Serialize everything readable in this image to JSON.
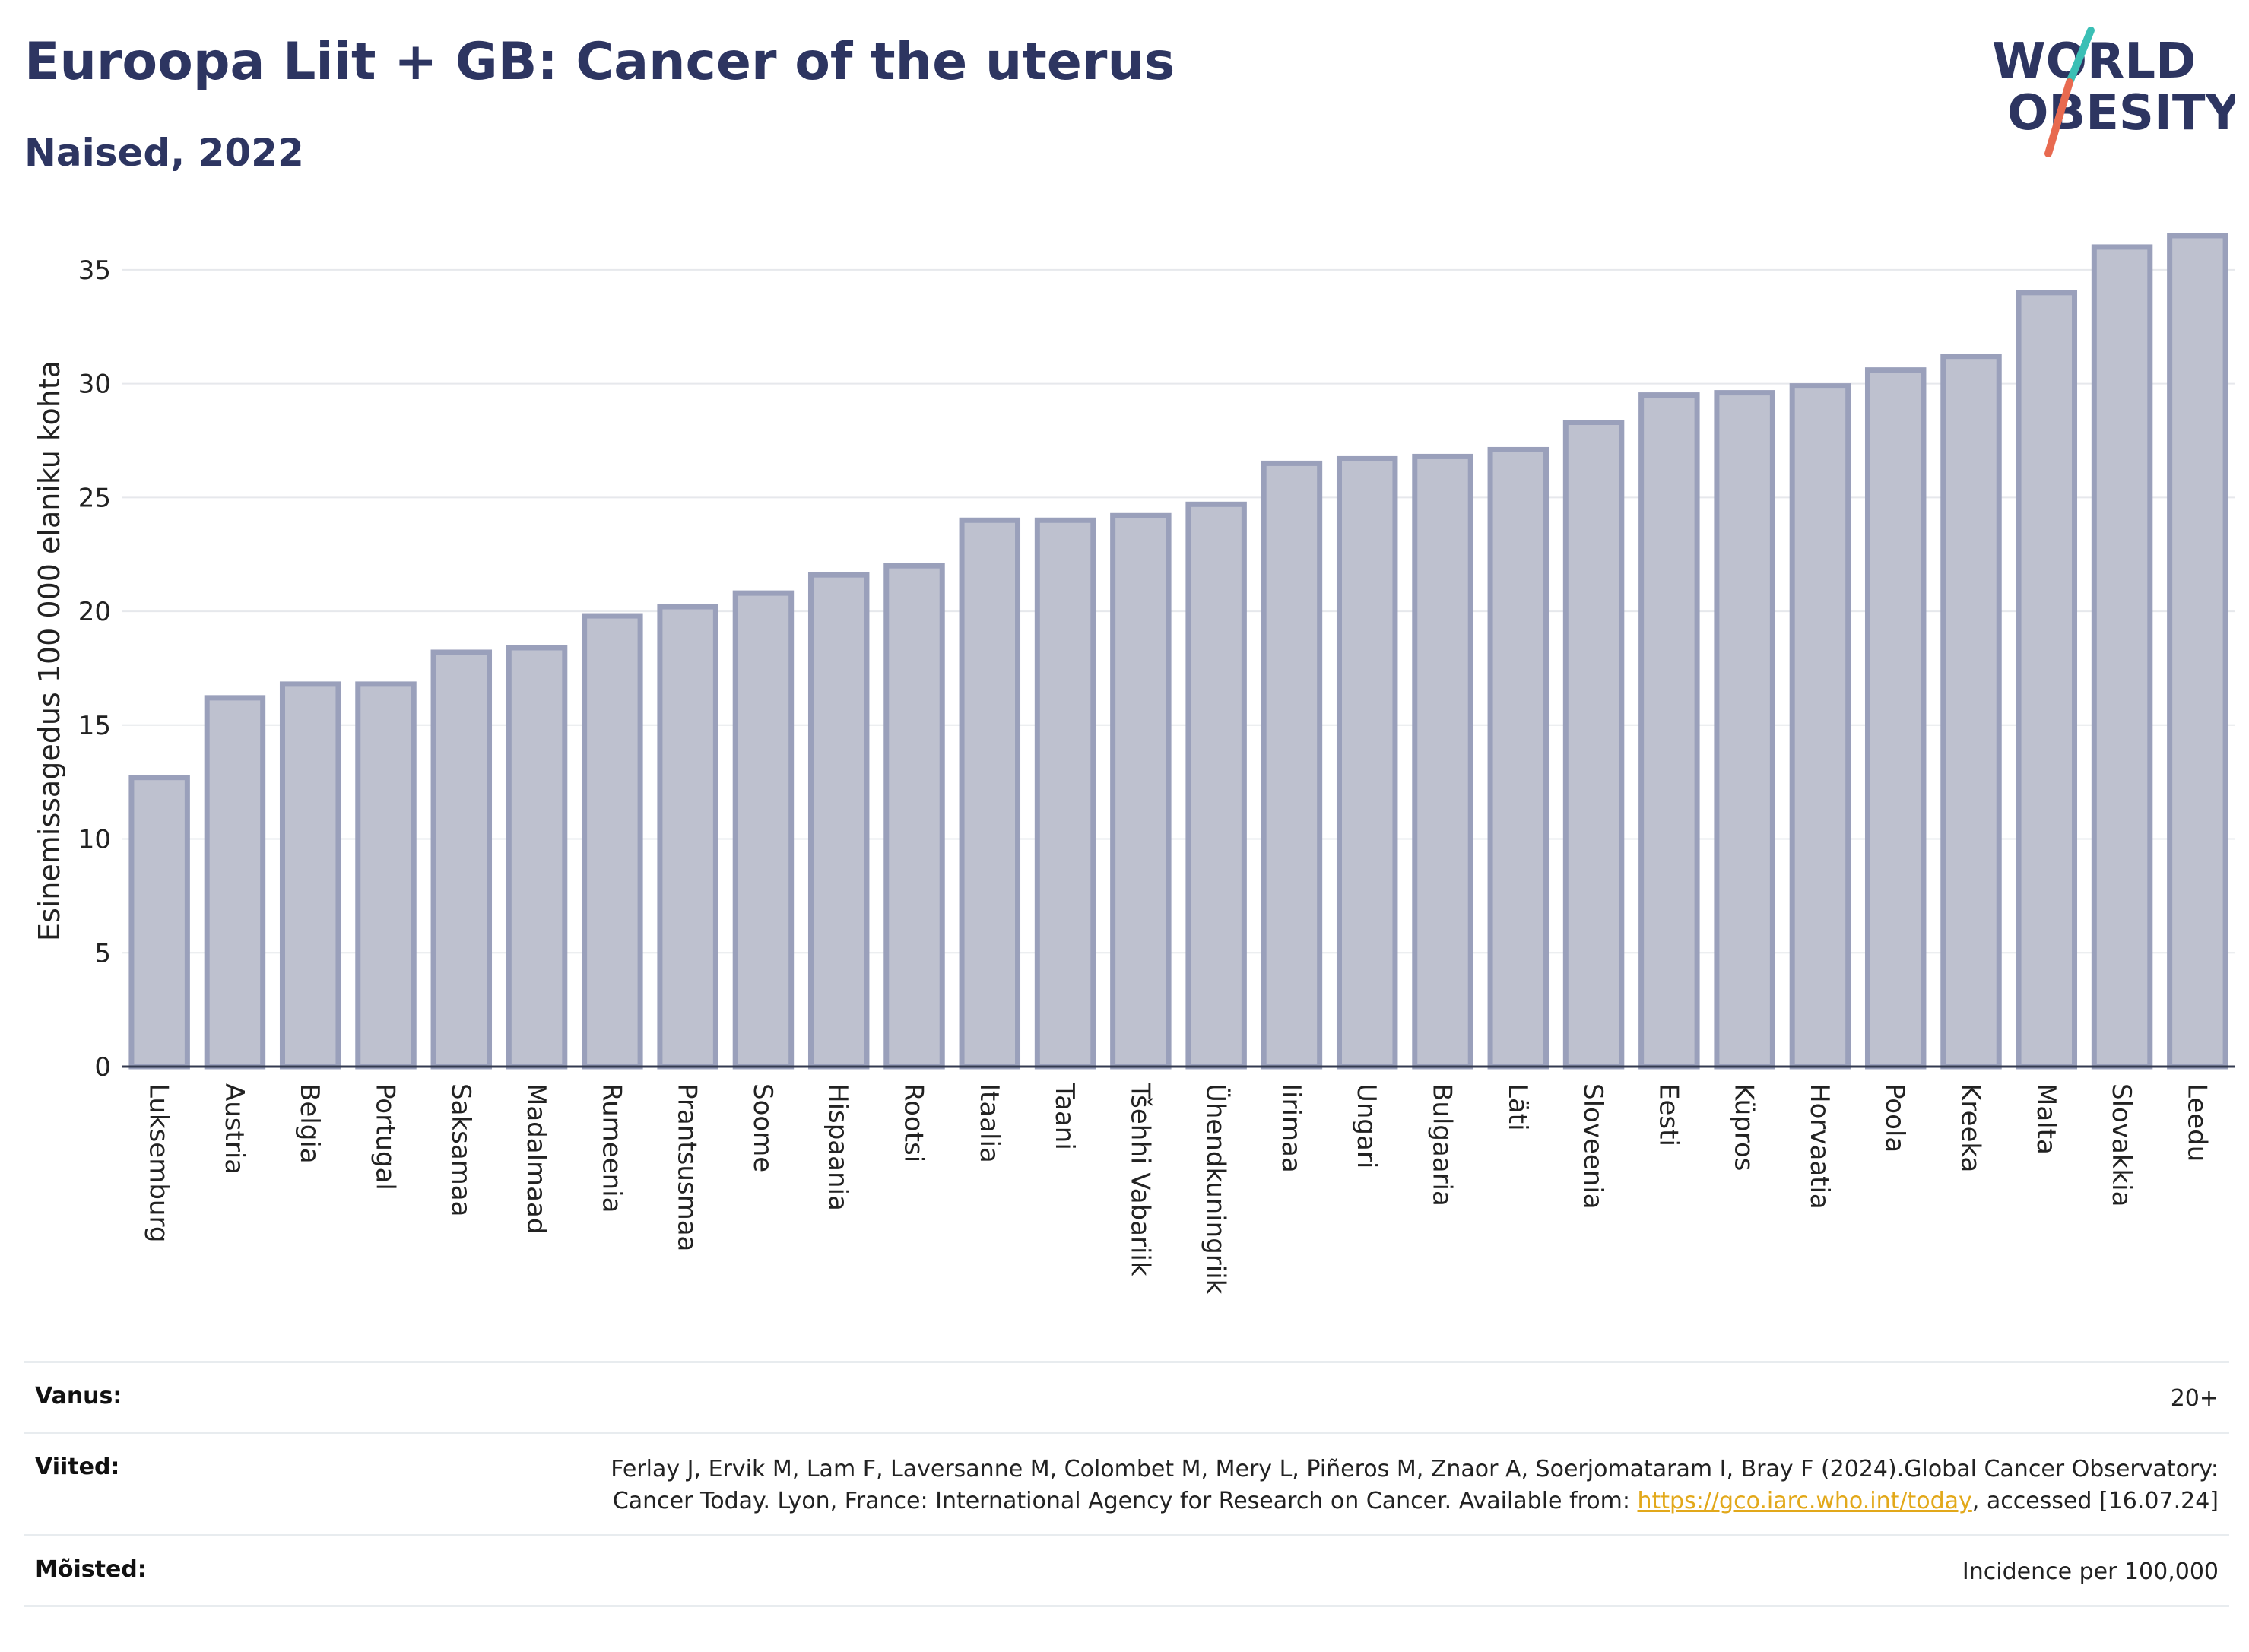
{
  "header": {
    "title": "Euroopa Liit + GB: Cancer of the uterus",
    "subtitle": "Naised, 2022"
  },
  "logo": {
    "line1": "WORLD",
    "line2": "OBESITY",
    "brand_color": "#2d3561",
    "accent_teal": "#3bbfb5",
    "accent_red": "#e86a50"
  },
  "chart_data": {
    "type": "bar",
    "title": "Euroopa Liit + GB: Cancer of the uterus",
    "subtitle": "Naised, 2022",
    "ylabel": "Esinemissagedus 100 000 elaniku kohta",
    "xlabel": "",
    "ylim": [
      0,
      37.5
    ],
    "yticks": [
      0,
      5,
      10,
      15,
      20,
      25,
      30,
      35
    ],
    "grid": true,
    "bar_fill": "#bec1cf",
    "bar_stroke": "#9aa0bb",
    "categories": [
      "Luksemburg",
      "Austria",
      "Belgia",
      "Portugal",
      "Saksamaa",
      "Madalmaad",
      "Rumeenia",
      "Prantsusmaa",
      "Soome",
      "Hispaania",
      "Rootsi",
      "Itaalia",
      "Taani",
      "Tšehhi Vabariik",
      "Ühendkuningriik",
      "Iirimaa",
      "Ungari",
      "Bulgaaria",
      "Läti",
      "Sloveenia",
      "Eesti",
      "Küpros",
      "Horvaatia",
      "Poola",
      "Kreeka",
      "Malta",
      "Slovakkia",
      "Leedu"
    ],
    "values": [
      12.7,
      16.2,
      16.8,
      16.8,
      18.2,
      18.4,
      19.8,
      20.2,
      20.8,
      21.6,
      22.0,
      24.0,
      24.0,
      24.2,
      24.7,
      26.5,
      26.7,
      26.8,
      27.1,
      28.3,
      29.5,
      29.6,
      29.9,
      30.6,
      31.2,
      34.0,
      36.0,
      36.5
    ]
  },
  "info": {
    "age": {
      "label": "Vanus:",
      "value": "20+"
    },
    "refs": {
      "label": "Viited:",
      "text_before": "Ferlay J, Ervik M, Lam F, Laversanne M, Colombet M, Mery L, Piñeros M, Znaor A, Soerjomataram I, Bray F (2024).Global Cancer Observatory: Cancer Today. Lyon, France: International Agency for Research on Cancer. Available from: ",
      "link": "https://gco.iarc.who.int/today",
      "text_after": ", accessed [16.07.24]"
    },
    "definitions": {
      "label": "Mõisted:",
      "value": "Incidence per 100,000"
    }
  }
}
